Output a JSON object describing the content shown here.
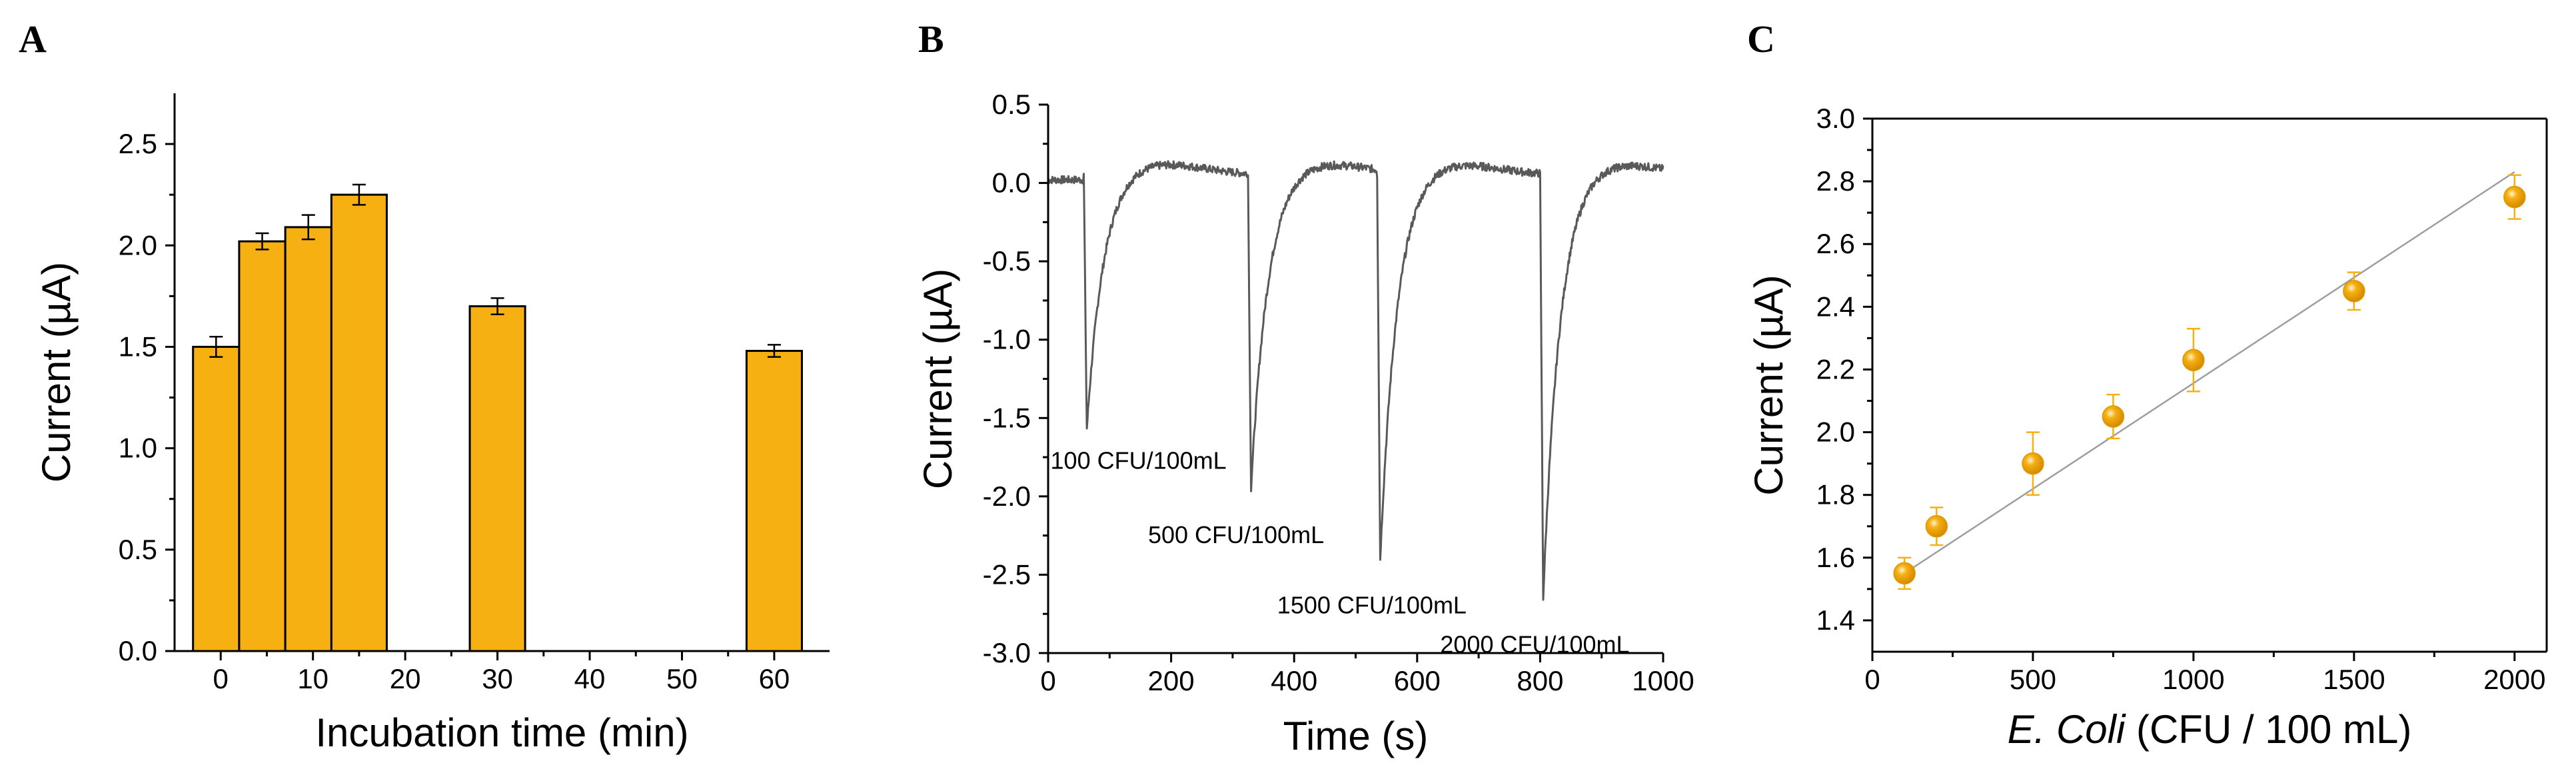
{
  "chart_data": [
    {
      "panel": "A",
      "type": "bar",
      "title": "",
      "xlabel": "Incubation time (min)",
      "ylabel": "Current (µA)",
      "xlim": [
        -5,
        66
      ],
      "ylim": [
        0,
        2.75
      ],
      "xticks": [
        0,
        10,
        20,
        30,
        40,
        50,
        60
      ],
      "yticks": [
        0.0,
        0.5,
        1.0,
        1.5,
        2.0,
        2.5
      ],
      "bar_color": "#F6B012",
      "edge_color": "#000000",
      "bars": [
        {
          "x_start": -3,
          "x_end": 2,
          "value": 1.5,
          "error": 0.05
        },
        {
          "x_start": 2,
          "x_end": 7,
          "value": 2.02,
          "error": 0.04
        },
        {
          "x_start": 7,
          "x_end": 12,
          "value": 2.09,
          "error": 0.06
        },
        {
          "x_start": 12,
          "x_end": 18,
          "value": 2.25,
          "error": 0.05
        },
        {
          "x_start": 27,
          "x_end": 33,
          "value": 1.7,
          "error": 0.04
        },
        {
          "x_start": 57,
          "x_end": 63,
          "value": 1.48,
          "error": 0.03
        }
      ]
    },
    {
      "panel": "B",
      "type": "line",
      "title": "",
      "xlabel": "Time (s)",
      "ylabel": "Current (µA)",
      "xlim": [
        0,
        1000
      ],
      "ylim": [
        -3.0,
        0.5
      ],
      "xticks": [
        0,
        200,
        400,
        600,
        800,
        1000
      ],
      "yticks": [
        0.5,
        0.0,
        -0.5,
        -1.0,
        -1.5,
        -2.0,
        -2.5,
        -3.0
      ],
      "line_color": "#595959",
      "injections": [
        {
          "time": 58,
          "peak": -1.62,
          "label": "100 CFU/100mL"
        },
        {
          "time": 325,
          "peak": -2.0,
          "label": "500 CFU/100mL"
        },
        {
          "time": 535,
          "peak": -2.45,
          "label": "1500 CFU/100mL"
        },
        {
          "time": 800,
          "peak": -2.7,
          "label": "2000 CFU/100mL"
        }
      ],
      "baseline": 0.05
    },
    {
      "panel": "C",
      "type": "scatter",
      "title": "",
      "xlabel_italic": "E. Coli",
      "xlabel_rest": " (CFU / 100 mL)",
      "ylabel": "Current (µA)",
      "xlim": [
        0,
        2100
      ],
      "ylim": [
        1.3,
        3.0
      ],
      "xticks": [
        0,
        500,
        1000,
        1500,
        2000
      ],
      "yticks": [
        1.4,
        1.6,
        1.8,
        2.0,
        2.2,
        2.4,
        2.6,
        2.8,
        3.0
      ],
      "point_color": "#F6B012",
      "fit_color": "#9e9e9e",
      "points": [
        {
          "x": 100,
          "y": 1.55,
          "error": 0.05
        },
        {
          "x": 200,
          "y": 1.7,
          "error": 0.06
        },
        {
          "x": 500,
          "y": 1.9,
          "error": 0.1
        },
        {
          "x": 750,
          "y": 2.05,
          "error": 0.07
        },
        {
          "x": 1000,
          "y": 2.23,
          "error": 0.1
        },
        {
          "x": 1500,
          "y": 2.45,
          "error": 0.06
        },
        {
          "x": 2000,
          "y": 2.75,
          "error": 0.07
        }
      ],
      "fit_line": {
        "x": [
          100,
          2000
        ],
        "y": [
          1.55,
          2.83
        ]
      }
    }
  ]
}
